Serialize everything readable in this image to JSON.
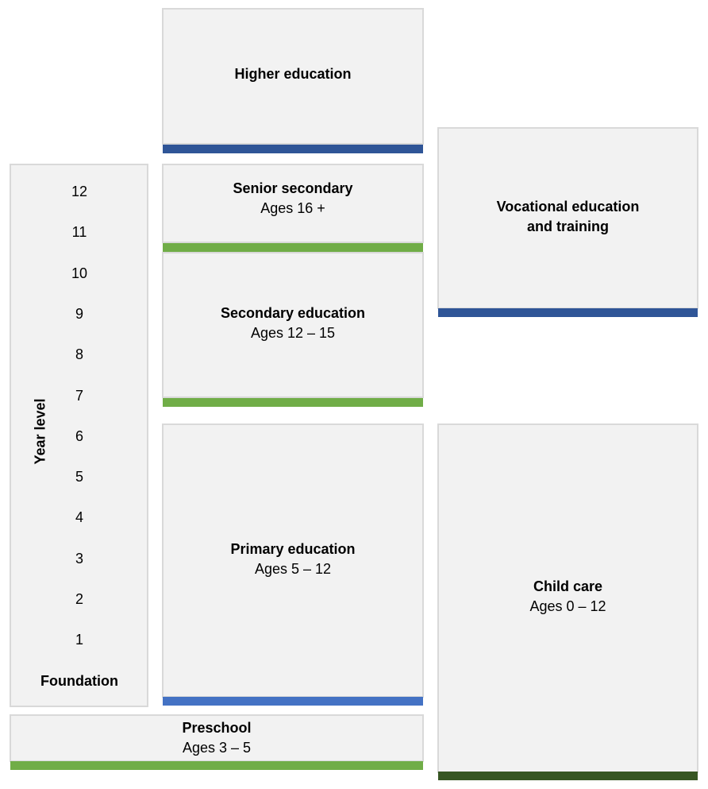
{
  "diagram": {
    "year_level": {
      "label": "Year level",
      "levels": [
        "12",
        "11",
        "10",
        "9",
        "8",
        "7",
        "6",
        "5",
        "4",
        "3",
        "2",
        "1",
        "Foundation"
      ]
    },
    "higher_education": {
      "title": "Higher education",
      "bar_color": "#2f5597"
    },
    "senior_secondary": {
      "title": "Senior secondary",
      "ages": "Ages 16 +",
      "bar_color": "#70ad47"
    },
    "secondary_education": {
      "title": "Secondary education",
      "ages": "Ages 12 – 15",
      "bar_color": "#70ad47"
    },
    "primary_education": {
      "title": "Primary education",
      "ages": "Ages 5 – 12",
      "bar_color": "#4472c4"
    },
    "preschool": {
      "title": "Preschool",
      "ages": "Ages 3 – 5",
      "bar_color": "#70ad47"
    },
    "vocational": {
      "title_line1": "Vocational education",
      "title_line2": "and training",
      "bar_color": "#2f5597"
    },
    "child_care": {
      "title": "Child care",
      "ages": "Ages 0 – 12",
      "bar_color": "#375623"
    }
  }
}
